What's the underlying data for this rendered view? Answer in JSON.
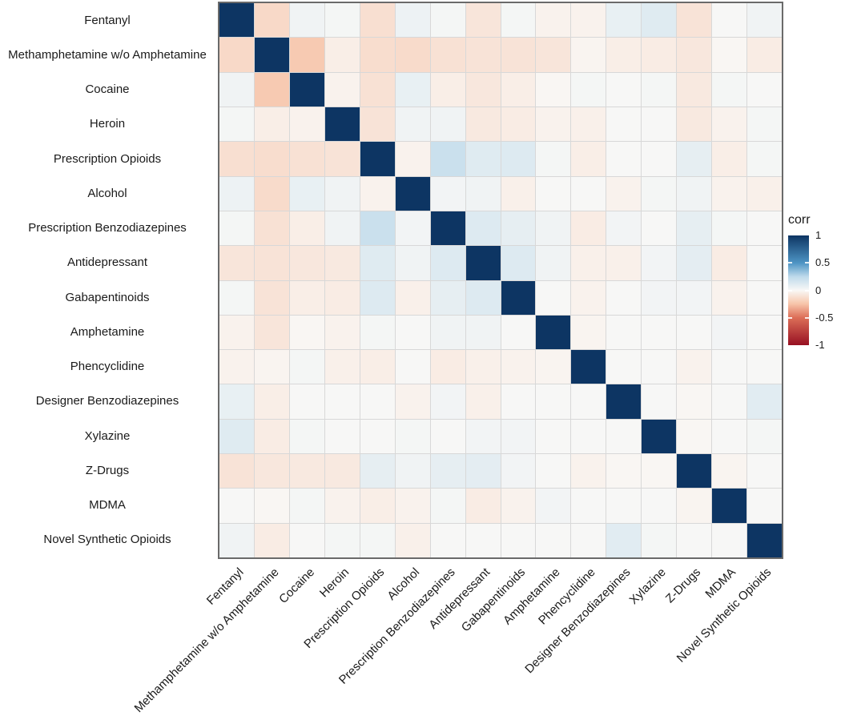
{
  "chart_data": {
    "type": "heatmap",
    "title": "",
    "xlabel": "",
    "ylabel": "",
    "categories": [
      "Fentanyl",
      "Methamphetamine w/o Amphetamine",
      "Cocaine",
      "Heroin",
      "Prescription Opioids",
      "Alcohol",
      "Prescription Benzodiazepines",
      "Antidepressant",
      "Gabapentinoids",
      "Amphetamine",
      "Phencyclidine",
      "Designer Benzodiazepines",
      "Xylazine",
      "Z-Drugs",
      "MDMA",
      "Novel Synthetic Opioids"
    ],
    "matrix": [
      [
        1,
        -0.15,
        0.04,
        0.02,
        -0.12,
        0.05,
        0.02,
        -0.09,
        0.02,
        -0.03,
        -0.03,
        0.07,
        0.11,
        -0.1,
        0.01,
        0.04
      ],
      [
        -0.15,
        1,
        -0.22,
        -0.05,
        -0.13,
        -0.14,
        -0.11,
        -0.1,
        -0.1,
        -0.09,
        -0.02,
        -0.05,
        -0.06,
        -0.08,
        -0.01,
        -0.06
      ],
      [
        0.04,
        -0.22,
        1,
        -0.03,
        -0.11,
        0.07,
        -0.05,
        -0.08,
        -0.05,
        -0.01,
        0.02,
        0.01,
        0.02,
        -0.07,
        0.02,
        0.01
      ],
      [
        0.02,
        -0.05,
        -0.03,
        1,
        -0.1,
        0.04,
        0.04,
        -0.07,
        -0.06,
        -0.03,
        -0.04,
        0.01,
        0.01,
        -0.07,
        -0.03,
        0.02
      ],
      [
        -0.12,
        -0.13,
        -0.11,
        -0.1,
        1,
        -0.03,
        0.2,
        0.11,
        0.12,
        0.02,
        -0.05,
        0.01,
        0.01,
        0.08,
        -0.05,
        0.02
      ],
      [
        0.05,
        -0.14,
        0.07,
        0.04,
        -0.03,
        1,
        0.03,
        0.04,
        -0.04,
        0.01,
        0.01,
        -0.03,
        0.02,
        0.04,
        -0.03,
        -0.04
      ],
      [
        0.02,
        -0.11,
        -0.05,
        0.04,
        0.2,
        0.03,
        1,
        0.12,
        0.08,
        0.04,
        -0.06,
        0.03,
        0.01,
        0.08,
        0.02,
        0.01
      ],
      [
        -0.09,
        -0.1,
        -0.08,
        -0.07,
        0.11,
        0.04,
        0.12,
        1,
        0.12,
        0.04,
        -0.04,
        -0.04,
        0.03,
        0.09,
        -0.06,
        0.01
      ],
      [
        0.02,
        -0.1,
        -0.05,
        -0.06,
        0.12,
        -0.04,
        0.08,
        0.12,
        1,
        0.01,
        -0.03,
        0.01,
        0.03,
        0.03,
        -0.03,
        0.01
      ],
      [
        -0.03,
        -0.09,
        -0.01,
        -0.03,
        0.02,
        0.01,
        0.04,
        0.04,
        0.01,
        1,
        -0.02,
        0.01,
        0.01,
        0.01,
        0.03,
        0.01
      ],
      [
        -0.03,
        -0.02,
        0.02,
        -0.04,
        -0.05,
        0.01,
        -0.06,
        -0.04,
        -0.03,
        -0.02,
        1,
        0.01,
        0.01,
        -0.03,
        0.01,
        0.01
      ],
      [
        0.07,
        -0.05,
        0.01,
        0.01,
        0.01,
        -0.03,
        0.03,
        -0.04,
        0.01,
        0.01,
        0.01,
        1,
        0.01,
        -0.01,
        0.01,
        0.1
      ],
      [
        0.11,
        -0.06,
        0.02,
        0.01,
        0.01,
        0.02,
        0.01,
        0.03,
        0.03,
        0.01,
        0.01,
        0.01,
        1,
        -0.01,
        0.01,
        0.02
      ],
      [
        -0.1,
        -0.08,
        -0.07,
        -0.07,
        0.08,
        0.04,
        0.08,
        0.09,
        0.03,
        0.01,
        -0.03,
        -0.01,
        -0.01,
        1,
        -0.02,
        0.01
      ],
      [
        0.01,
        -0.01,
        0.02,
        -0.03,
        -0.05,
        -0.03,
        0.02,
        -0.06,
        -0.03,
        0.03,
        0.01,
        0.01,
        0.01,
        -0.02,
        1,
        0.01
      ],
      [
        0.04,
        -0.06,
        0.01,
        0.02,
        0.02,
        -0.04,
        0.01,
        0.01,
        0.01,
        0.01,
        0.01,
        0.1,
        0.02,
        0.01,
        0.01,
        1
      ]
    ],
    "value_range": [
      -1,
      1
    ],
    "legend": {
      "title": "corr",
      "tick_labels": [
        "1",
        "0.5",
        "0",
        "-0.5",
        "-1"
      ],
      "tick_values": [
        1,
        0.5,
        0,
        -0.5,
        -1
      ],
      "position": "right"
    },
    "color_scale": [
      {
        "value": -1.0,
        "color": "#971022"
      },
      {
        "value": -0.5,
        "color": "#DC6E57"
      },
      {
        "value": -0.25,
        "color": "#F7C4A9"
      },
      {
        "value": 0.0,
        "color": "#F9F8F6"
      },
      {
        "value": 0.25,
        "color": "#BEDAEB"
      },
      {
        "value": 0.5,
        "color": "#4D94C4"
      },
      {
        "value": 1.0,
        "color": "#0D3563"
      }
    ],
    "layout": {
      "x_label_rotation_deg": 45,
      "grid": true,
      "diagonal_value": 1
    }
  },
  "colors": {
    "grid_line": "#D8D8D8",
    "panel_border": "#6A6A6A",
    "background": "#FFFFFF",
    "text": "#1A1A1A",
    "positive_end": "#0D3563",
    "negative_end": "#971022"
  }
}
